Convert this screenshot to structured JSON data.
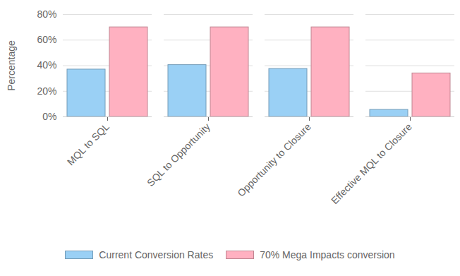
{
  "chart_data": {
    "type": "bar",
    "y_label": "Percentage",
    "categories": [
      "MQL to SQL",
      "SQL to Opportunity",
      "Opportunity to Closure",
      "Effective MQL to Closure"
    ],
    "series": [
      {
        "name": "Current Conversion Rates",
        "color": "#9ad0f5",
        "values": [
          37,
          40.5,
          37.5,
          5.5
        ]
      },
      {
        "name": "70% Mega Impacts conversion",
        "color": "#ffb1c1",
        "values": [
          70,
          70,
          70,
          34
        ]
      }
    ],
    "ylim": [
      0,
      80
    ],
    "yticks": [
      {
        "value": 0,
        "label": "0%"
      },
      {
        "value": 20,
        "label": "20%"
      },
      {
        "value": 40,
        "label": "40%"
      },
      {
        "value": 60,
        "label": "60%"
      },
      {
        "value": 80,
        "label": "80%"
      }
    ],
    "grid": true,
    "legend": "bottom"
  }
}
